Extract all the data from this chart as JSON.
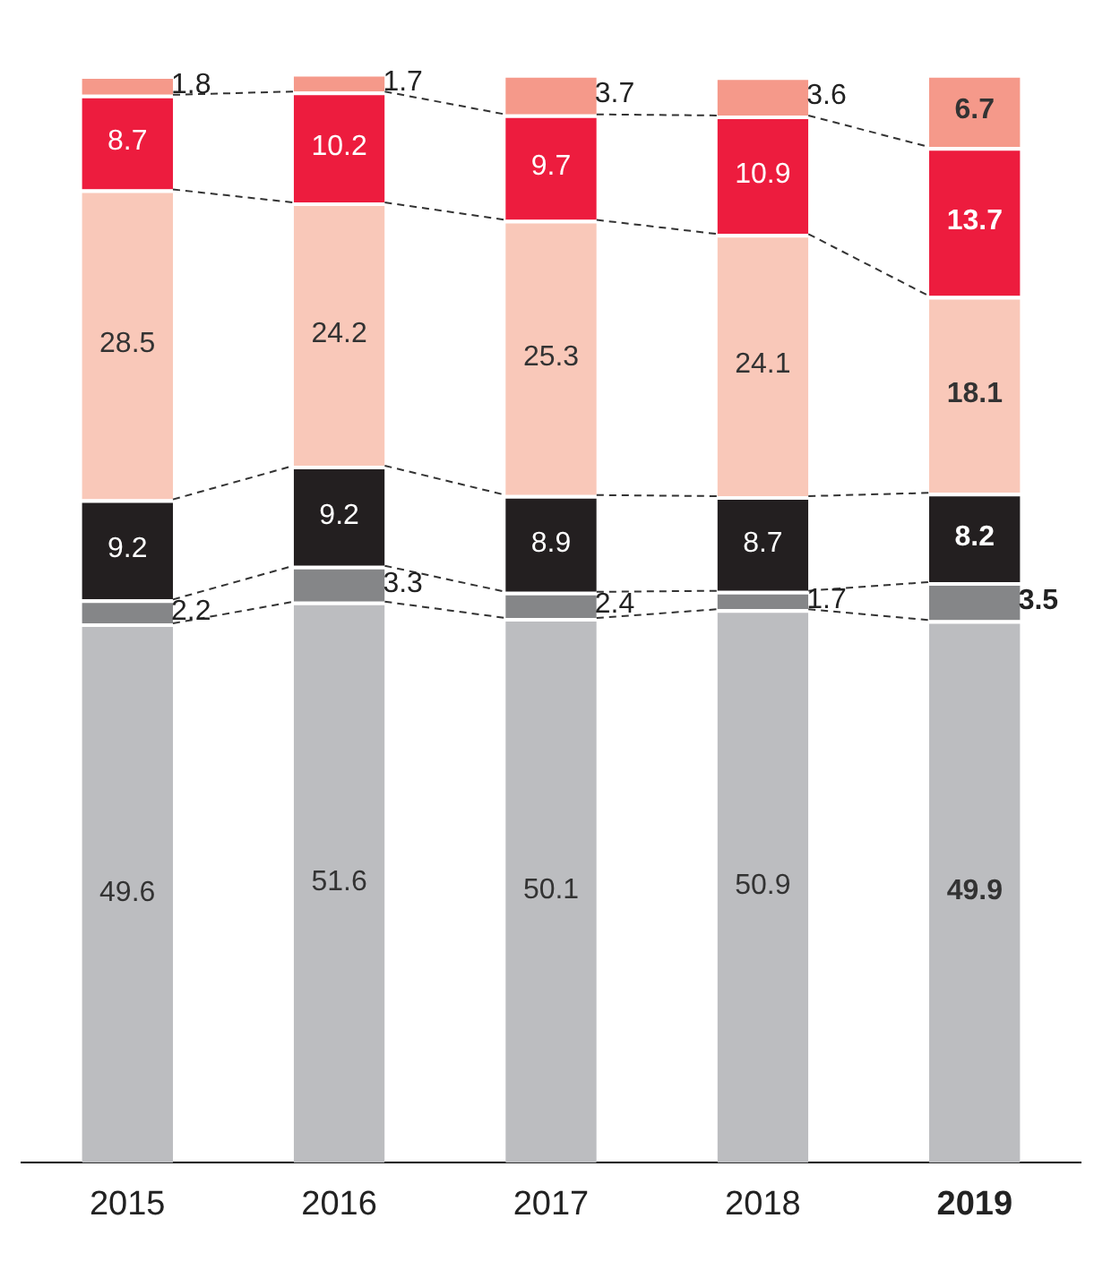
{
  "chart_data": {
    "type": "bar",
    "stacked": true,
    "categories": [
      "2015",
      "2016",
      "2017",
      "2018",
      "2019"
    ],
    "series": [
      {
        "color": "#bcbdc0",
        "values": [
          49.6,
          51.6,
          50.1,
          50.9,
          49.9
        ]
      },
      {
        "color": "#858688",
        "values": [
          2.2,
          3.3,
          2.4,
          1.7,
          3.5
        ]
      },
      {
        "color": "#231f20",
        "values": [
          9.2,
          9.2,
          8.9,
          8.7,
          8.2
        ]
      },
      {
        "color": "#f9c8b9",
        "values": [
          28.5,
          24.2,
          25.3,
          24.1,
          18.1
        ]
      },
      {
        "color": "#ed1c3e",
        "values": [
          8.7,
          10.2,
          9.7,
          10.9,
          13.7
        ]
      },
      {
        "color": "#f5998a",
        "values": [
          1.8,
          1.7,
          3.7,
          3.6,
          6.7
        ]
      }
    ],
    "ylim": [
      0,
      100
    ],
    "data_labels": true,
    "grid": false,
    "legend": false,
    "tick_labels": "x"
  }
}
